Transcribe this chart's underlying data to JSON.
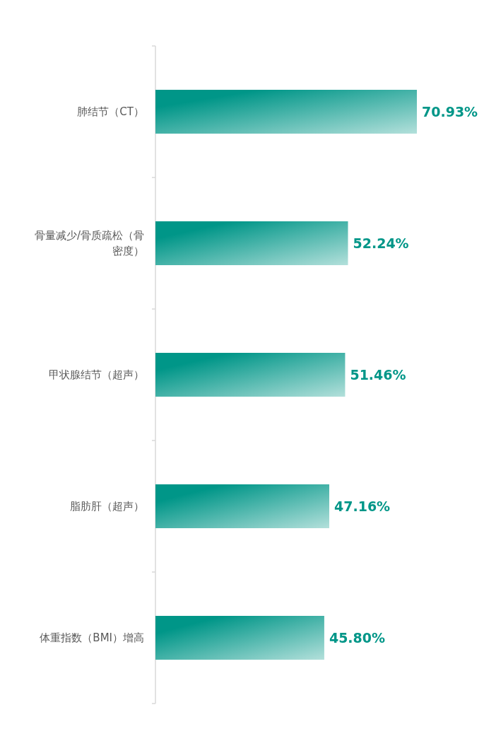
{
  "chart_data": {
    "type": "bar",
    "orientation": "horizontal",
    "categories": [
      "肺结节（CT）",
      "骨量减少/骨质疏松（骨密度）",
      "甲状腺结节（超声）",
      "脂肪肝（超声）",
      "体重指数（BMI）增高"
    ],
    "values": [
      70.93,
      52.24,
      51.46,
      47.16,
      45.8
    ],
    "value_labels": [
      "70.93%",
      "52.24%",
      "51.46%",
      "47.16%",
      "45.80%"
    ],
    "color": "#009688"
  }
}
